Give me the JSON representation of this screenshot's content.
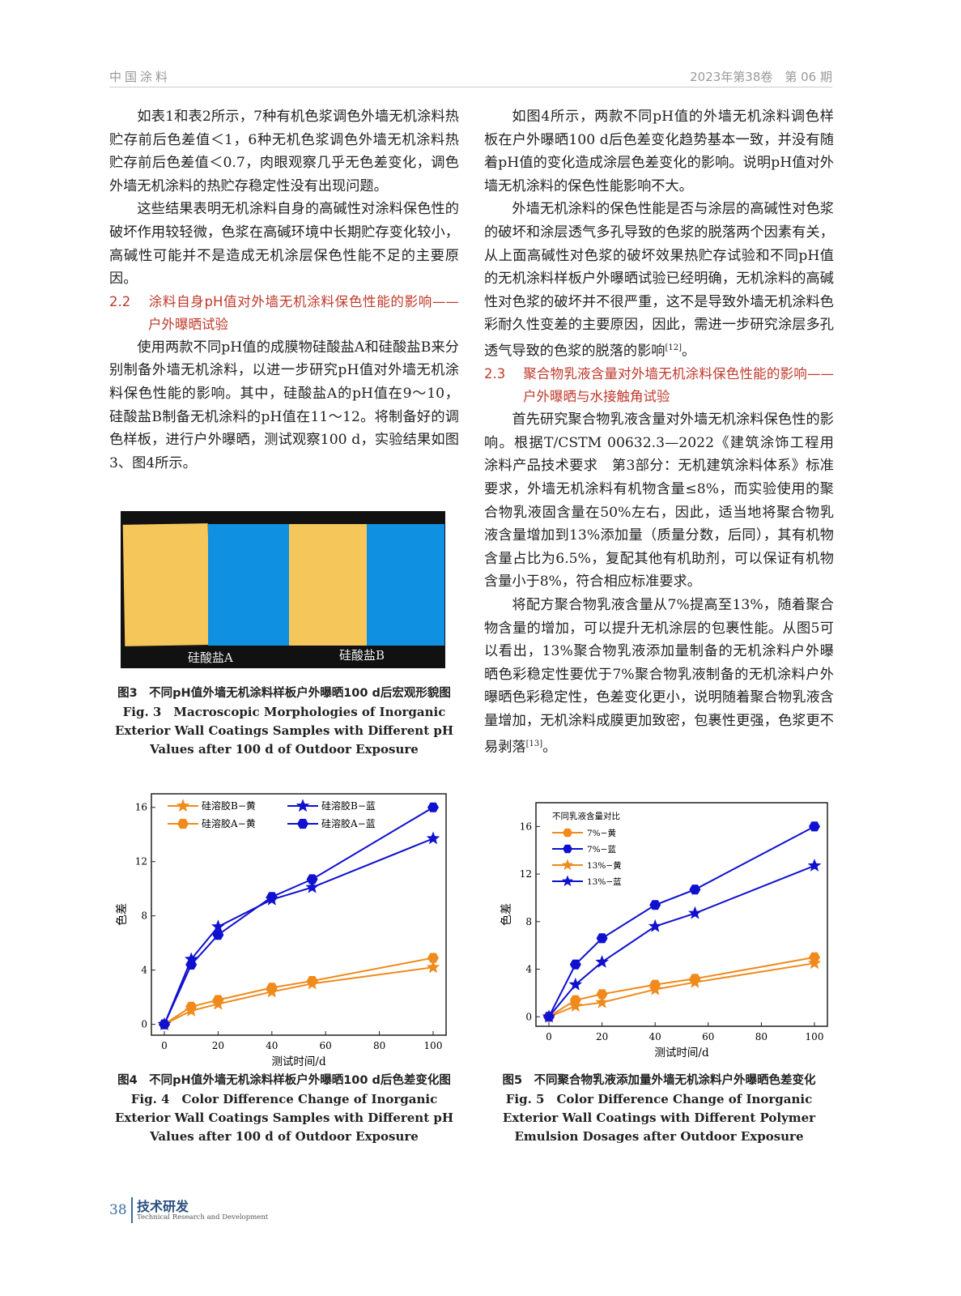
{
  "header": {
    "journal": "中国涂料",
    "issue": "2023年第38卷　第 06 期"
  },
  "left": {
    "p1": "如表1和表2所示，7种有机色浆调色外墙无机涂料热贮存前后色差值＜1，6种无机色浆调色外墙无机涂料热贮存前后色差值＜0.7，肉眼观察几乎无色差变化，调色外墙无机涂料的热贮存稳定性没有出现问题。",
    "p2": "这些结果表明无机涂料自身的高碱性对涂料保色性的破坏作用较轻微，色浆在高碱环境中长期贮存变化较小，高碱性可能并不是造成无机涂层保色性能不足的主要原因。",
    "sec_num": "2.2",
    "sec_title": "涂料自身pH值对外墙无机涂料保色性能的影响——户外曝晒试验",
    "p3": "使用两款不同pH值的成膜物硅酸盐A和硅酸盐B来分别制备外墙无机涂料，以进一步研究pH值对外墙无机涂料保色性能的影响。其中，硅酸盐A的pH值在9～10，硅酸盐B制备无机涂料的pH值在11～12。将制备好的调色样板，进行户外曝晒，测试观察100 d，实验结果如图3、图4所示。"
  },
  "fig3": {
    "label_a": "硅酸盐A",
    "label_b": "硅酸盐B",
    "cap_cn": "图3　不同pH值外墙无机涂料样板户外曝晒100 d后宏观形貌图",
    "cap_en": "Fig. 3　Macroscopic Morphologies of Inorganic Exterior Wall Coatings Samples with Different pH Values after 100 d of Outdoor Exposure"
  },
  "right": {
    "p1": "如图4所示，两款不同pH值的外墙无机涂料调色样板在户外曝晒100 d后色差变化趋势基本一致，并没有随着pH值的变化造成涂层色差变化的影响。说明pH值对外墙无机涂料的保色性能影响不大。",
    "p2": "外墙无机涂料的保色性能是否与涂层的高碱性对色浆的破坏和涂层透气多孔导致的色浆的脱落两个因素有关，从上面高碱性对色浆的破坏效果热贮存试验和不同pH值的无机涂料样板户外曝晒试验已经明确，无机涂料的高碱性对色浆的破坏并不很严重，这不是导致外墙无机涂料色彩耐久性变差的主要原因，因此，需进一步研究涂层多孔透气导致的色浆的脱落的影响",
    "p2_ref": "[12]",
    "p2_end": "。",
    "sec_num": "2.3",
    "sec_title": "聚合物乳液含量对外墙无机涂料保色性能的影响——户外曝晒与水接触角试验",
    "p3": "首先研究聚合物乳液含量对外墙无机涂料保色性的影响。根据T/CSTM 00632.3—2022《建筑涂饰工程用涂料产品技术要求　第3部分：无机建筑涂料体系》标准要求，外墙无机涂料有机物含量≤8%，而实验使用的聚合物乳液固含量在50%左右，因此，适当地将聚合物乳液含量增加到13%添加量（质量分数，后同），其有机物含量占比为6.5%，复配其他有机助剂，可以保证有机物含量小于8%，符合相应标准要求。",
    "p4": "将配方聚合物乳液含量从7%提高至13%，随着聚合物含量的增加，可以提升无机涂层的包裹性能。从图5可以看出，13%聚合物乳液添加量制备的无机涂料户外曝晒色彩稳定性要优于7%聚合物乳液制备的无机涂料户外曝晒色彩稳定性，色差变化更小，说明随着聚合物乳液含量增加，无机涂料成膜更加致密，包裹性更强，色浆更不易剥落",
    "p4_ref": "[13]",
    "p4_end": "。"
  },
  "fig4": {
    "cap_cn": "图4　不同pH值外墙无机涂料样板户外曝晒100 d后色差变化图",
    "cap_en": "Fig. 4　Color Difference Change of Inorganic Exterior Wall Coatings Samples with Different pH Values after 100 d of Outdoor Exposure"
  },
  "fig5": {
    "cap_cn": "图5　不同聚合物乳液添加量外墙无机涂料户外曝晒色差变化",
    "cap_en": "Fig. 5　Color Difference Change of Inorganic Exterior Wall Coatings with Different Polymer Emulsion Dosages after Outdoor Exposure"
  },
  "chart_data": [
    {
      "type": "line",
      "xlabel": "测试时间/d",
      "ylabel": "色差",
      "xlim": [
        0,
        100
      ],
      "ylim": [
        -0.8,
        17
      ],
      "xticks": [
        0,
        20,
        40,
        60,
        80,
        100
      ],
      "yticks": [
        0,
        4,
        8,
        12,
        16
      ],
      "legend": "top-left",
      "legend_title": "",
      "x": [
        0,
        10,
        20,
        40,
        55,
        100
      ],
      "series": [
        {
          "name": "硅溶胶B−黄",
          "color": "#f08a1c",
          "marker": "star",
          "values": [
            0,
            1.0,
            1.5,
            2.4,
            3.0,
            4.2
          ]
        },
        {
          "name": "硅溶胶B−蓝",
          "color": "#1010d0",
          "marker": "star",
          "values": [
            0,
            4.8,
            7.2,
            9.2,
            10.1,
            13.7
          ]
        },
        {
          "name": "硅溶胶A−黄",
          "color": "#f08a1c",
          "marker": "hexagon",
          "values": [
            0,
            1.3,
            1.8,
            2.7,
            3.2,
            4.9
          ]
        },
        {
          "name": "硅溶胶A−蓝",
          "color": "#1010d0",
          "marker": "hexagon",
          "values": [
            0,
            4.4,
            6.6,
            9.4,
            10.7,
            16.0
          ]
        }
      ]
    },
    {
      "type": "line",
      "xlabel": "测试时间/d",
      "ylabel": "色差",
      "xlim": [
        0,
        100
      ],
      "ylim": [
        -0.8,
        18
      ],
      "xticks": [
        0,
        20,
        40,
        60,
        80,
        100
      ],
      "yticks": [
        0,
        4,
        8,
        12,
        16
      ],
      "legend": "top-left",
      "legend_title": "不同乳液含量对比",
      "x": [
        0,
        10,
        20,
        40,
        55,
        100
      ],
      "series": [
        {
          "name": "7%−黄",
          "color": "#f08a1c",
          "marker": "hexagon",
          "values": [
            0,
            1.4,
            1.9,
            2.7,
            3.2,
            5.0
          ]
        },
        {
          "name": "7%−蓝",
          "color": "#1010d0",
          "marker": "hexagon",
          "values": [
            0,
            4.4,
            6.6,
            9.4,
            10.7,
            16.0
          ]
        },
        {
          "name": "13%−黄",
          "color": "#f08a1c",
          "marker": "star",
          "values": [
            0,
            0.9,
            1.2,
            2.3,
            2.9,
            4.5
          ]
        },
        {
          "name": "13%−蓝",
          "color": "#1010d0",
          "marker": "star",
          "values": [
            0,
            2.7,
            4.6,
            7.6,
            8.7,
            12.7
          ]
        }
      ]
    }
  ],
  "footer": {
    "page": "38",
    "section_cn": "技术研发",
    "section_en": "Technical Research and Development"
  }
}
